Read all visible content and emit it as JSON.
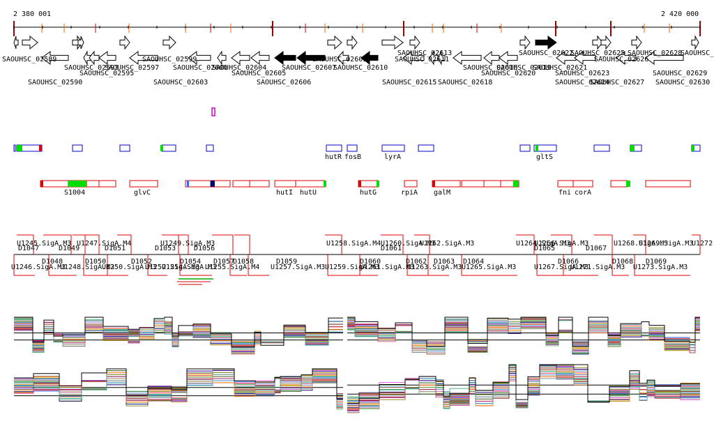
{
  "coords": {
    "start": "2 380 001",
    "end": "2 420 000"
  },
  "gene_labels": [
    "SAOUHSC_02589",
    "SAOUHSC_02590",
    "SAOUHSC_02593",
    "SAOUHSC_02595",
    "SAOUHSC_02597",
    "SAOUHSC_02599",
    "SAOUHSC_02600",
    "SAOUHSC_02603",
    "SAOUHSC_02604",
    "SAOUHSC_02605",
    "SAOUHSC_02606",
    "SAOUHSC_02607",
    "SAOUHSC_02608",
    "SAOUHSC_02610",
    "SAOUHSC_02611",
    "SAOUHSC_02613",
    "SAOUHSC_02615",
    "SAOUHSC_02616",
    "SAOUHSC_02618",
    "SAOUHSC_02619",
    "SAOUHSC_02620",
    "SAOUHSC_02621",
    "SAOUHSC_02622",
    "SAOUHSC_02623",
    "SAOUHSC_02624",
    "SAOUHSC_02625",
    "SAOUHSC_02626",
    "SAOUHSC_02627",
    "SAOUHSC_02628",
    "SAOUHSC_02629",
    "SAOUHSC_02630",
    "SAOUHSC_026"
  ],
  "feature_labels": [
    "hutR",
    "fosB",
    "lyrA",
    "gltS"
  ],
  "operon_labels": [
    "S1004",
    "glvC",
    "hutI",
    "hutU",
    "hutG",
    "rpiA",
    "galM",
    "fni",
    "corA"
  ],
  "tu_upper_labels": [
    "U1245.SigA.M3",
    "U1247.SigA.M4",
    "U1249.SigA.M3",
    "U1258.SigA.M4",
    "U1260.SigA.M3",
    "U1262.SigA.M3",
    "U1264.SigA.M3",
    "U1266.SigA.M3",
    "U1268.SigA.M3",
    "U1269.SigA.M3",
    "U1272"
  ],
  "tu_lower_labels": [
    "U1246.SigA.M3",
    "U1248.SigA.M3",
    "U1250.SigA.M3",
    "U1252.SigA.M3",
    "U1254.SigA.M3",
    "U1255.SigA.M4",
    "U1257.SigA.M3",
    "U1259.SigA.M3",
    "U1261.SigA.M3",
    "U1263.SigA.M3",
    "U1265.SigA.M3",
    "U1267.SigA.M3",
    "U1271.SigA.M3",
    "U1273.SigA.M3"
  ],
  "d_upper_labels": [
    "D1047",
    "D1049",
    "D1051",
    "D1053",
    "D1056",
    "D1061",
    "D1065",
    "D1067"
  ],
  "d_lower_labels": [
    "D1048",
    "D1050",
    "D1052",
    "D1054",
    "D1057",
    "D1058",
    "D1059",
    "D1060",
    "D1062",
    "D1063",
    "D1064",
    "D1066",
    "D1068",
    "D1069"
  ],
  "colors": {
    "axis": "#000000",
    "tick_red": "#cc0000",
    "tick_orange": "#ff6600",
    "feature_blue": "#0000cc",
    "operon_red": "#dd0000",
    "green": "#00dd00",
    "magenta": "#cc00cc"
  }
}
